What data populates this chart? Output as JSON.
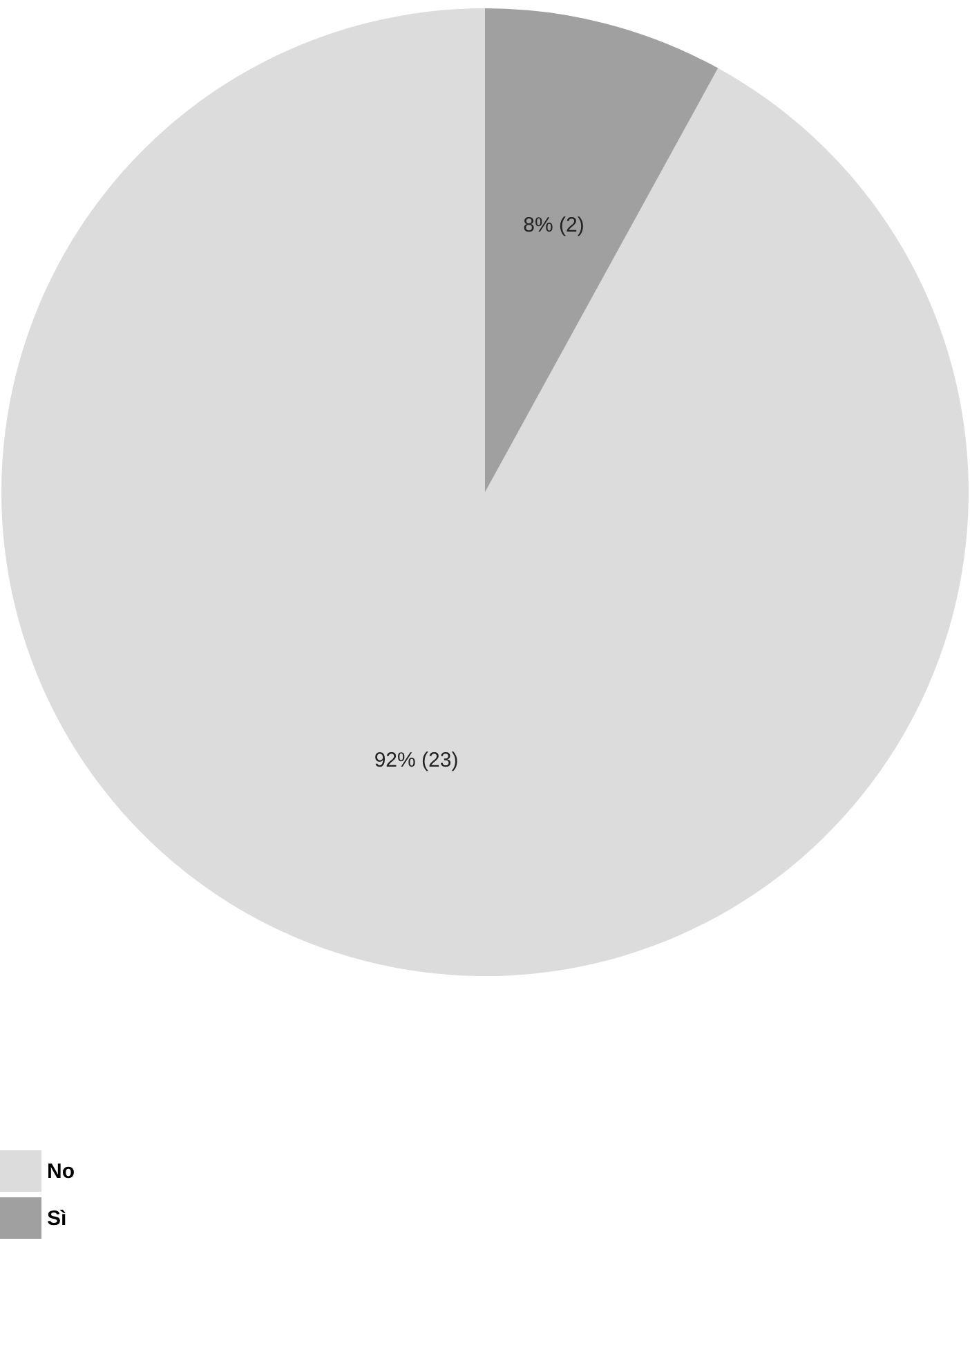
{
  "chart_data": {
    "type": "pie",
    "categories": [
      "No",
      "Sì"
    ],
    "values": [
      23,
      2
    ],
    "value_labels": [
      "92% (23)",
      "8% (2)"
    ],
    "colors": [
      "#dcdcdc",
      "#a0a0a0"
    ],
    "legend": "bottom"
  }
}
